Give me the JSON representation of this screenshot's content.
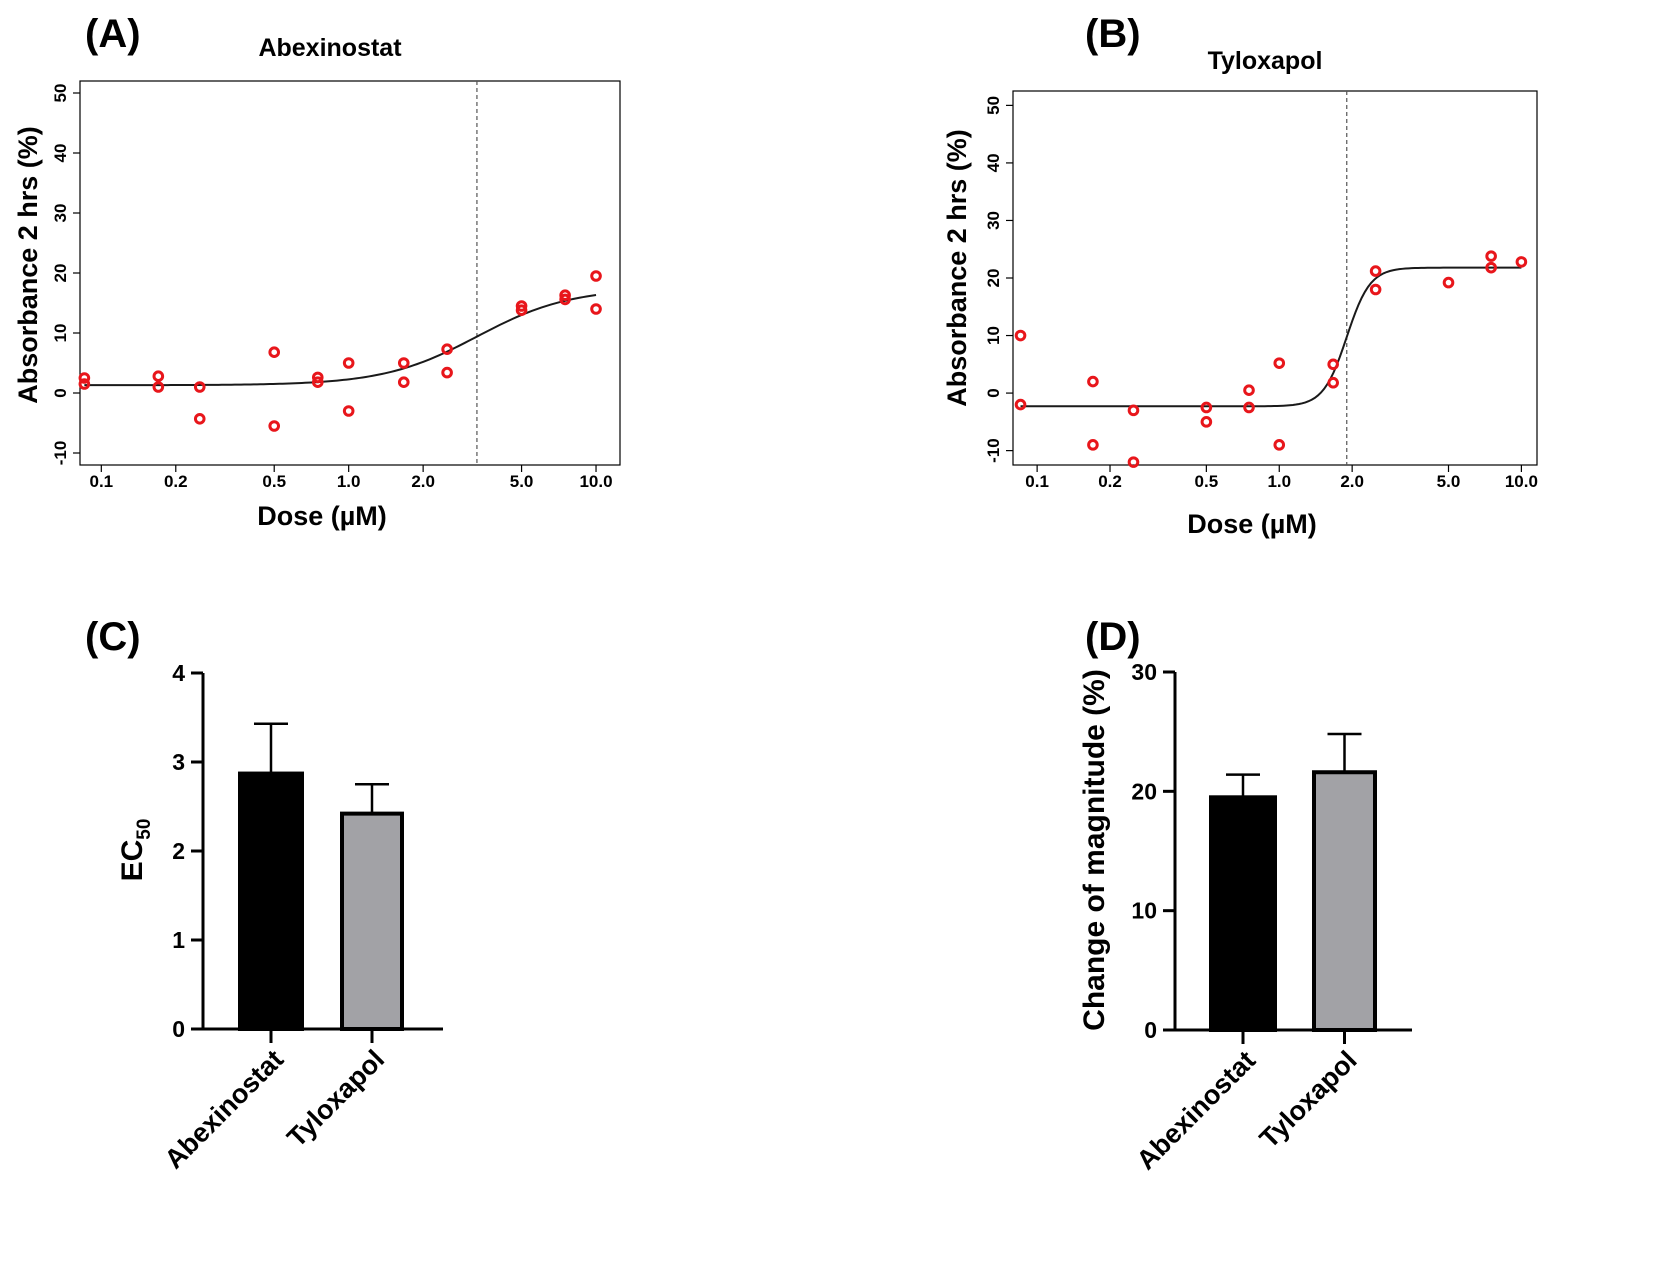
{
  "panels": {
    "A": {
      "label": "(A)",
      "title": "Abexinostat"
    },
    "B": {
      "label": "(B)",
      "title": "Tyloxapol"
    },
    "C": {
      "label": "(C)"
    },
    "D": {
      "label": "(D)"
    }
  },
  "colors": {
    "point": "#e8161b",
    "curve": "#1a1a1a",
    "bar_abexinostat": "#000000",
    "bar_tyloxapol": "#a2a2a6"
  },
  "chart_data": [
    {
      "id": "A",
      "type": "scatter",
      "title": "Abexinostat",
      "xlabel": "Dose (µM)",
      "ylabel": "Absorbance 2 hrs (%)",
      "x_scale": "log",
      "xlim": [
        0.082,
        12.5
      ],
      "ylim": [
        -12,
        52
      ],
      "x_ticks": [
        0.1,
        0.2,
        0.5,
        1.0,
        2.0,
        5.0,
        10.0
      ],
      "x_tick_labels": [
        "0.1",
        "0.2",
        "0.5",
        "1.0",
        "2.0",
        "5.0",
        "10.0"
      ],
      "y_ticks": [
        -10,
        0,
        10,
        20,
        30,
        40,
        50
      ],
      "y_tick_labels": [
        "-10",
        "0",
        "10",
        "20",
        "30",
        "40",
        "50"
      ],
      "points": [
        [
          0.0854,
          2.5
        ],
        [
          0.0854,
          1.5
        ],
        [
          0.17,
          2.8
        ],
        [
          0.17,
          1.0
        ],
        [
          0.25,
          1.0
        ],
        [
          0.25,
          -4.3
        ],
        [
          0.5,
          6.8
        ],
        [
          0.5,
          -5.5
        ],
        [
          0.75,
          2.6
        ],
        [
          0.75,
          1.8
        ],
        [
          1.0,
          5.0
        ],
        [
          1.0,
          -3.0
        ],
        [
          1.67,
          5.0
        ],
        [
          1.67,
          1.8
        ],
        [
          2.5,
          7.3
        ],
        [
          2.5,
          3.4
        ],
        [
          5.0,
          14.5
        ],
        [
          5.0,
          13.8
        ],
        [
          7.5,
          16.3
        ],
        [
          7.5,
          15.6
        ],
        [
          10.0,
          19.5
        ],
        [
          10.0,
          14.0
        ]
      ],
      "fit": {
        "model": "4PL",
        "bottom": 1.3,
        "top": 17.5,
        "ec50": 3.3,
        "hill": 2.3
      },
      "vline_x": 3.3
    },
    {
      "id": "B",
      "type": "scatter",
      "title": "Tyloxapol",
      "xlabel": "Dose (µM)",
      "ylabel": "Absorbance 2 hrs (%)",
      "x_scale": "log",
      "xlim": [
        0.0795,
        11.6
      ],
      "ylim": [
        -12.5,
        52.5
      ],
      "x_ticks": [
        0.1,
        0.2,
        0.5,
        1.0,
        2.0,
        5.0,
        10.0
      ],
      "x_tick_labels": [
        "0.1",
        "0.2",
        "0.5",
        "1.0",
        "2.0",
        "5.0",
        "10.0"
      ],
      "y_ticks": [
        -10,
        0,
        10,
        20,
        30,
        40,
        50
      ],
      "y_tick_labels": [
        "-10",
        "0",
        "10",
        "20",
        "30",
        "40",
        "50"
      ],
      "points": [
        [
          0.0854,
          10.0
        ],
        [
          0.0854,
          -2.0
        ],
        [
          0.17,
          2.0
        ],
        [
          0.17,
          -9.0
        ],
        [
          0.25,
          -3.0
        ],
        [
          0.25,
          -12.0
        ],
        [
          0.5,
          -2.5
        ],
        [
          0.5,
          -5.0
        ],
        [
          0.75,
          0.5
        ],
        [
          0.75,
          -2.5
        ],
        [
          1.0,
          5.2
        ],
        [
          1.0,
          -9.0
        ],
        [
          1.67,
          5.0
        ],
        [
          1.67,
          1.8
        ],
        [
          2.5,
          21.2
        ],
        [
          2.5,
          18.0
        ],
        [
          5.0,
          19.2
        ],
        [
          7.5,
          23.8
        ],
        [
          7.5,
          21.8
        ],
        [
          10.0,
          22.8
        ]
      ],
      "fit": {
        "model": "4PL",
        "bottom": -2.3,
        "top": 21.8,
        "ec50": 1.9,
        "hill": 9.0
      },
      "vline_x": 1.9
    },
    {
      "id": "C",
      "type": "bar",
      "ylabel": "EC",
      "ylabel_subscript": "50",
      "categories": [
        "Abexinostat",
        "Tyloxapol"
      ],
      "values": [
        2.87,
        2.42
      ],
      "errors": [
        0.56,
        0.33
      ],
      "ylim": [
        0,
        4
      ],
      "y_ticks": [
        0,
        1,
        2,
        3,
        4
      ],
      "y_tick_labels": [
        "0",
        "1",
        "2",
        "3",
        "4"
      ]
    },
    {
      "id": "D",
      "type": "bar",
      "ylabel": "Change of magnitude (%)",
      "categories": [
        "Abexinostat",
        "Tyloxapol"
      ],
      "values": [
        19.5,
        21.6
      ],
      "errors": [
        1.9,
        3.2
      ],
      "ylim": [
        0,
        30
      ],
      "y_ticks": [
        0,
        10,
        20,
        30
      ],
      "y_tick_labels": [
        "0",
        "10",
        "20",
        "30"
      ]
    }
  ]
}
